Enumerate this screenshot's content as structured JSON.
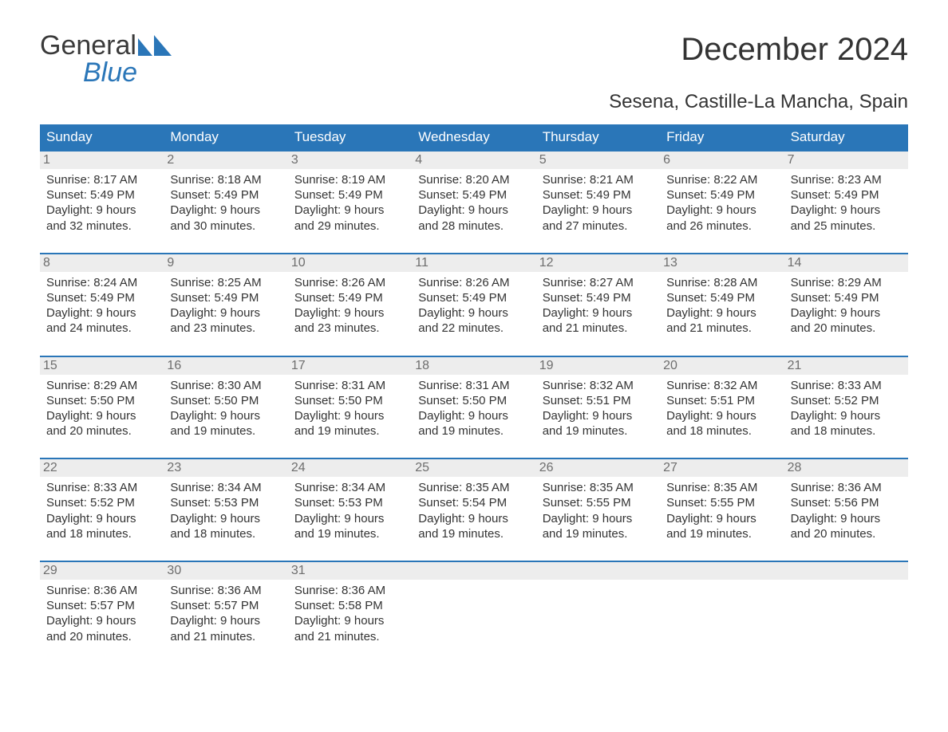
{
  "brand": {
    "name_part1": "General",
    "name_part2": "Blue",
    "color_text": "#3a3a3a",
    "color_accent": "#2a76b8"
  },
  "header": {
    "title": "December 2024",
    "subtitle": "Sesena, Castille-La Mancha, Spain"
  },
  "calendar": {
    "type": "table",
    "columns": [
      "Sunday",
      "Monday",
      "Tuesday",
      "Wednesday",
      "Thursday",
      "Friday",
      "Saturday"
    ],
    "header_bg": "#2a76b8",
    "header_text_color": "#ffffff",
    "daynum_bg": "#ededed",
    "daynum_color": "#6e6e6e",
    "week_top_border_color": "#2a76b8",
    "body_text_color": "#333333",
    "background_color": "#ffffff",
    "header_fontsize": 17,
    "body_fontsize": 15,
    "weeks": [
      [
        {
          "n": "1",
          "sunrise": "8:17 AM",
          "sunset": "5:49 PM",
          "dl1": "Daylight: 9 hours",
          "dl2": "and 32 minutes."
        },
        {
          "n": "2",
          "sunrise": "8:18 AM",
          "sunset": "5:49 PM",
          "dl1": "Daylight: 9 hours",
          "dl2": "and 30 minutes."
        },
        {
          "n": "3",
          "sunrise": "8:19 AM",
          "sunset": "5:49 PM",
          "dl1": "Daylight: 9 hours",
          "dl2": "and 29 minutes."
        },
        {
          "n": "4",
          "sunrise": "8:20 AM",
          "sunset": "5:49 PM",
          "dl1": "Daylight: 9 hours",
          "dl2": "and 28 minutes."
        },
        {
          "n": "5",
          "sunrise": "8:21 AM",
          "sunset": "5:49 PM",
          "dl1": "Daylight: 9 hours",
          "dl2": "and 27 minutes."
        },
        {
          "n": "6",
          "sunrise": "8:22 AM",
          "sunset": "5:49 PM",
          "dl1": "Daylight: 9 hours",
          "dl2": "and 26 minutes."
        },
        {
          "n": "7",
          "sunrise": "8:23 AM",
          "sunset": "5:49 PM",
          "dl1": "Daylight: 9 hours",
          "dl2": "and 25 minutes."
        }
      ],
      [
        {
          "n": "8",
          "sunrise": "8:24 AM",
          "sunset": "5:49 PM",
          "dl1": "Daylight: 9 hours",
          "dl2": "and 24 minutes."
        },
        {
          "n": "9",
          "sunrise": "8:25 AM",
          "sunset": "5:49 PM",
          "dl1": "Daylight: 9 hours",
          "dl2": "and 23 minutes."
        },
        {
          "n": "10",
          "sunrise": "8:26 AM",
          "sunset": "5:49 PM",
          "dl1": "Daylight: 9 hours",
          "dl2": "and 23 minutes."
        },
        {
          "n": "11",
          "sunrise": "8:26 AM",
          "sunset": "5:49 PM",
          "dl1": "Daylight: 9 hours",
          "dl2": "and 22 minutes."
        },
        {
          "n": "12",
          "sunrise": "8:27 AM",
          "sunset": "5:49 PM",
          "dl1": "Daylight: 9 hours",
          "dl2": "and 21 minutes."
        },
        {
          "n": "13",
          "sunrise": "8:28 AM",
          "sunset": "5:49 PM",
          "dl1": "Daylight: 9 hours",
          "dl2": "and 21 minutes."
        },
        {
          "n": "14",
          "sunrise": "8:29 AM",
          "sunset": "5:49 PM",
          "dl1": "Daylight: 9 hours",
          "dl2": "and 20 minutes."
        }
      ],
      [
        {
          "n": "15",
          "sunrise": "8:29 AM",
          "sunset": "5:50 PM",
          "dl1": "Daylight: 9 hours",
          "dl2": "and 20 minutes."
        },
        {
          "n": "16",
          "sunrise": "8:30 AM",
          "sunset": "5:50 PM",
          "dl1": "Daylight: 9 hours",
          "dl2": "and 19 minutes."
        },
        {
          "n": "17",
          "sunrise": "8:31 AM",
          "sunset": "5:50 PM",
          "dl1": "Daylight: 9 hours",
          "dl2": "and 19 minutes."
        },
        {
          "n": "18",
          "sunrise": "8:31 AM",
          "sunset": "5:50 PM",
          "dl1": "Daylight: 9 hours",
          "dl2": "and 19 minutes."
        },
        {
          "n": "19",
          "sunrise": "8:32 AM",
          "sunset": "5:51 PM",
          "dl1": "Daylight: 9 hours",
          "dl2": "and 19 minutes."
        },
        {
          "n": "20",
          "sunrise": "8:32 AM",
          "sunset": "5:51 PM",
          "dl1": "Daylight: 9 hours",
          "dl2": "and 18 minutes."
        },
        {
          "n": "21",
          "sunrise": "8:33 AM",
          "sunset": "5:52 PM",
          "dl1": "Daylight: 9 hours",
          "dl2": "and 18 minutes."
        }
      ],
      [
        {
          "n": "22",
          "sunrise": "8:33 AM",
          "sunset": "5:52 PM",
          "dl1": "Daylight: 9 hours",
          "dl2": "and 18 minutes."
        },
        {
          "n": "23",
          "sunrise": "8:34 AM",
          "sunset": "5:53 PM",
          "dl1": "Daylight: 9 hours",
          "dl2": "and 18 minutes."
        },
        {
          "n": "24",
          "sunrise": "8:34 AM",
          "sunset": "5:53 PM",
          "dl1": "Daylight: 9 hours",
          "dl2": "and 19 minutes."
        },
        {
          "n": "25",
          "sunrise": "8:35 AM",
          "sunset": "5:54 PM",
          "dl1": "Daylight: 9 hours",
          "dl2": "and 19 minutes."
        },
        {
          "n": "26",
          "sunrise": "8:35 AM",
          "sunset": "5:55 PM",
          "dl1": "Daylight: 9 hours",
          "dl2": "and 19 minutes."
        },
        {
          "n": "27",
          "sunrise": "8:35 AM",
          "sunset": "5:55 PM",
          "dl1": "Daylight: 9 hours",
          "dl2": "and 19 minutes."
        },
        {
          "n": "28",
          "sunrise": "8:36 AM",
          "sunset": "5:56 PM",
          "dl1": "Daylight: 9 hours",
          "dl2": "and 20 minutes."
        }
      ],
      [
        {
          "n": "29",
          "sunrise": "8:36 AM",
          "sunset": "5:57 PM",
          "dl1": "Daylight: 9 hours",
          "dl2": "and 20 minutes."
        },
        {
          "n": "30",
          "sunrise": "8:36 AM",
          "sunset": "5:57 PM",
          "dl1": "Daylight: 9 hours",
          "dl2": "and 21 minutes."
        },
        {
          "n": "31",
          "sunrise": "8:36 AM",
          "sunset": "5:58 PM",
          "dl1": "Daylight: 9 hours",
          "dl2": "and 21 minutes."
        },
        null,
        null,
        null,
        null
      ]
    ],
    "labels": {
      "sunrise_prefix": "Sunrise: ",
      "sunset_prefix": "Sunset: "
    }
  }
}
